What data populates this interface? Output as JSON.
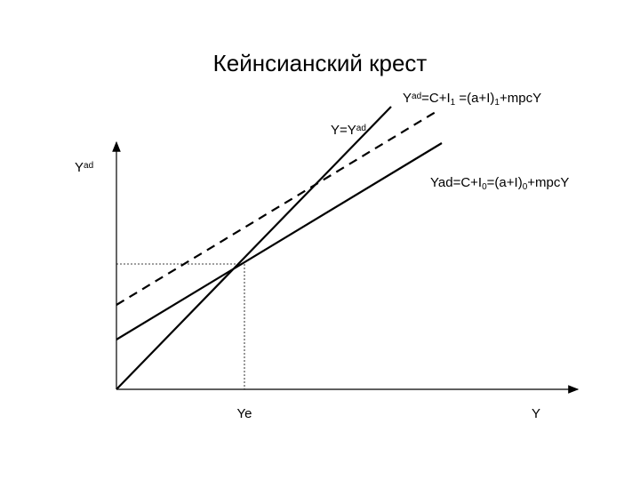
{
  "title": "Кейнсианский крест",
  "labels": {
    "y_axis": [
      {
        "text": "Y"
      },
      {
        "text": "ad",
        "pos": "sup"
      }
    ],
    "x_axis": [
      {
        "text": "Y"
      }
    ],
    "equilibrium": [
      {
        "text": "Ye"
      }
    ],
    "line_45": [
      {
        "text": "Y=Y"
      },
      {
        "text": "ad",
        "pos": "sup"
      }
    ],
    "line_ad1": [
      {
        "text": "Y"
      },
      {
        "text": "ad",
        "pos": "sup"
      },
      {
        "text": "=C+I"
      },
      {
        "text": "1",
        "pos": "sub"
      },
      {
        "text": " =(a+I)"
      },
      {
        "text": "1",
        "pos": "sub"
      },
      {
        "text": "+mpcY"
      }
    ],
    "line_ad0": [
      {
        "text": "Yad=C+I"
      },
      {
        "text": "0",
        "pos": "sub"
      },
      {
        "text": "=(a+I)"
      },
      {
        "text": "0",
        "pos": "sub"
      },
      {
        "text": "+mpcY"
      }
    ]
  }
}
